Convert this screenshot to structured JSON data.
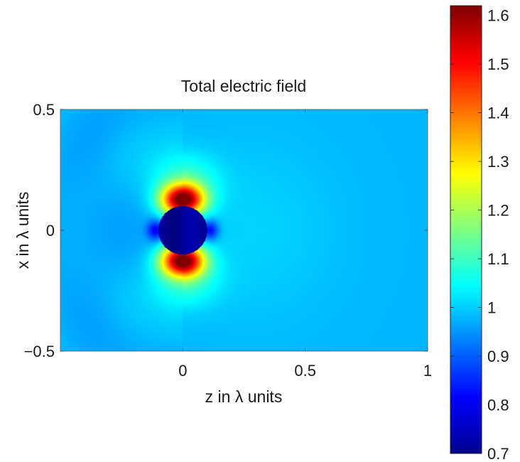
{
  "chart_data": {
    "type": "heatmap",
    "title": "Total electric field",
    "xlabel": "z in λ units",
    "ylabel": "x in λ units",
    "xlim": [
      -0.5,
      1
    ],
    "ylim": [
      -0.5,
      0.5
    ],
    "x_ticks": [
      {
        "value": 0,
        "label": "0"
      },
      {
        "value": 0.5,
        "label": "0.5"
      },
      {
        "value": 1,
        "label": "1"
      }
    ],
    "y_ticks": [
      {
        "value": 0.5,
        "label": "0.5"
      },
      {
        "value": 0,
        "label": "0"
      },
      {
        "value": -0.5,
        "label": "−0.5"
      }
    ],
    "colormap": "jet",
    "color_range": [
      0.7,
      1.62
    ],
    "colorbar_ticks": [
      {
        "value": 1.6,
        "label": "1.6"
      },
      {
        "value": 1.5,
        "label": "1.5"
      },
      {
        "value": 1.4,
        "label": "1.4"
      },
      {
        "value": 1.3,
        "label": "1.3"
      },
      {
        "value": 1.2,
        "label": "1.2"
      },
      {
        "value": 1.1,
        "label": "1.1"
      },
      {
        "value": 1.0,
        "label": "1"
      },
      {
        "value": 0.9,
        "label": "0.9"
      },
      {
        "value": 0.8,
        "label": "0.8"
      },
      {
        "value": 0.7,
        "label": "0.7"
      }
    ],
    "scatterer": {
      "center_z": 0,
      "center_x": 0,
      "radius": 0.1,
      "field_inside": 0.72
    },
    "field_features": {
      "background": 0.98,
      "max_field": 1.6,
      "hotspot_positions_x": [
        0.13,
        -0.13
      ],
      "shadow_min": 0.9
    }
  }
}
